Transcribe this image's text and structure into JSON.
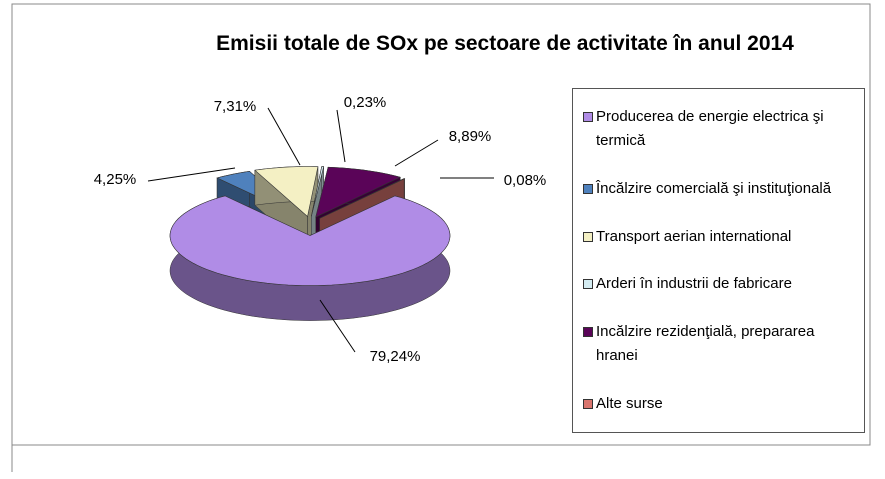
{
  "chart_data": {
    "type": "pie3d",
    "title": "Emisii totale de SOx pe sectoare de activitate în anul 2014",
    "categories": [
      "Producerea de energie electrica şi termică",
      "Încălzire comercială şi instituţională",
      "Transport aerian international",
      "Arderi în industrii de fabricare",
      "Incălzire rezidenţială, prepararea hranei",
      "Alte surse"
    ],
    "values": [
      79.24,
      4.25,
      7.31,
      0.23,
      8.89,
      0.08
    ],
    "value_labels": [
      "79,24%",
      "4,25%",
      "7,31%",
      "0,23%",
      "8,89%",
      "0,08%"
    ],
    "colors": [
      "#b08ce6",
      "#4f81bd",
      "#f4f0c4",
      "#d4ecf2",
      "#5a0458",
      "#d9756e"
    ],
    "legend": "right"
  }
}
